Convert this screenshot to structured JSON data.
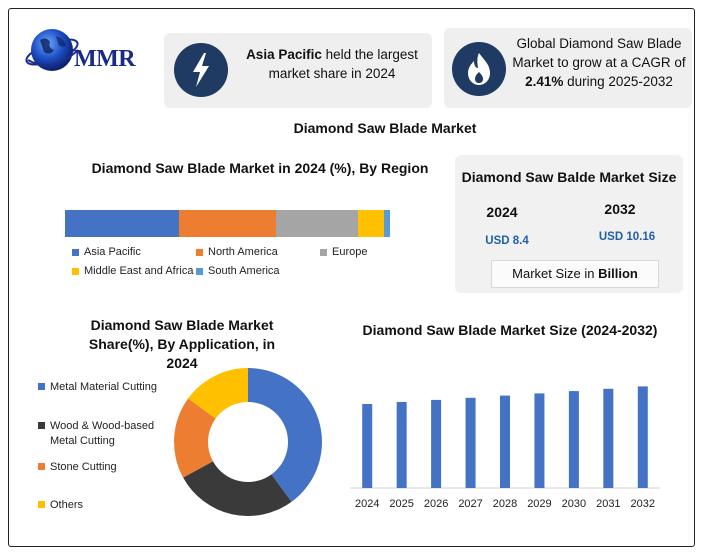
{
  "colors": {
    "blue": "#4472c4",
    "orange": "#ed7d31",
    "gray": "#a5a5a5",
    "yellow": "#ffc000",
    "light_blue": "#5b9bd5",
    "dark": "#3a3a3a",
    "navy": "#1f3a63",
    "value_blue": "#1f5fa8"
  },
  "logo": {
    "text": "MMR",
    "icon": "globe-icon"
  },
  "card_share": {
    "bold": "Asia Pacific",
    "text": " held the largest market share in 2024",
    "icon": "lightning-icon"
  },
  "card_cagr": {
    "line1": "Global Diamond Saw Blade Market to grow at a CAGR of",
    "bold": "2.41%",
    "line2": " during 2025-2032",
    "icon": "flame-icon"
  },
  "main_title": "Diamond Saw Blade Market",
  "size_box": {
    "title": "Diamond Saw Balde Market Size",
    "year1": "2024",
    "year2": "2032",
    "value1": "USD 8.4",
    "value2": "USD 10.16",
    "unit_prefix": "Market Size in ",
    "unit_bold": "Billion"
  },
  "chart_data": [
    {
      "type": "bar",
      "orientation": "horizontal-stacked",
      "title": "Diamond Saw Blade Market in 2024 (%), By Region",
      "categories": [
        "Asia Pacific",
        "North America",
        "Europe",
        "Middle East and Africa",
        "South America"
      ],
      "values": [
        35,
        30,
        25,
        8,
        2
      ],
      "colors": [
        "#4472c4",
        "#ed7d31",
        "#a5a5a5",
        "#ffc000",
        "#5b9bd5"
      ],
      "legend_position": "bottom"
    },
    {
      "type": "pie",
      "style": "donut",
      "title": "Diamond Saw Blade Market Share(%), By Application, in 2024",
      "categories": [
        "Metal Material Cutting",
        "Wood & Wood-based Metal Cutting",
        "Stone Cutting",
        "Others"
      ],
      "values": [
        40,
        27,
        18,
        15
      ],
      "colors": [
        "#4472c4",
        "#3a3a3a",
        "#ed7d31",
        "#ffc000"
      ],
      "legend_position": "left"
    },
    {
      "type": "bar",
      "title": "Diamond Saw Blade Market Size (2024-2032)",
      "categories": [
        "2024",
        "2025",
        "2026",
        "2027",
        "2028",
        "2029",
        "2030",
        "2031",
        "2032"
      ],
      "values": [
        8.4,
        8.6,
        8.81,
        9.02,
        9.24,
        9.46,
        9.69,
        9.92,
        10.16
      ],
      "ylim": [
        0,
        12
      ],
      "color": "#4472c4",
      "grid": false
    }
  ]
}
